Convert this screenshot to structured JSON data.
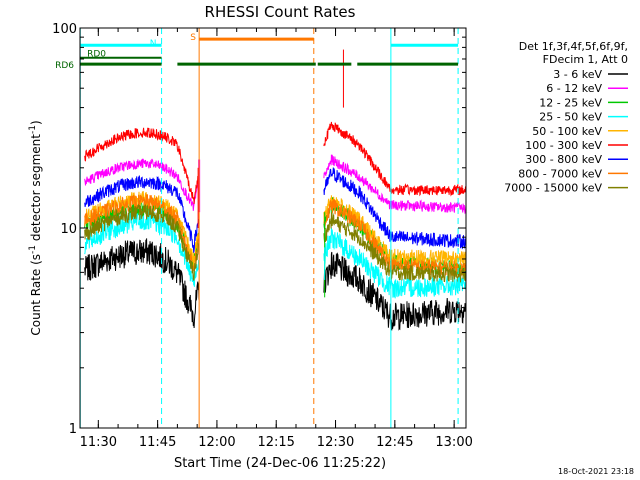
{
  "chart_data": {
    "type": "line",
    "title": "RHESSI Count Rates",
    "xlabel": "Start Time (24-Dec-06 11:25:22)",
    "ylabel_main": "Count Rate (s",
    "ylabel_sup1": "-1",
    "ylabel_mid": " detector segment",
    "ylabel_sup2": "-1",
    "ylabel_end": ")",
    "y_scale": "log",
    "ylim": [
      1,
      100
    ],
    "y_ticks": [
      {
        "value": 1,
        "label": "1"
      },
      {
        "value": 10,
        "label": "10"
      },
      {
        "value": 100,
        "label": "100"
      }
    ],
    "xlim": [
      "11:25:22",
      "13:03:00"
    ],
    "x_ticks": [
      "11:30",
      "11:45",
      "12:00",
      "12:15",
      "12:30",
      "12:45",
      "13:00"
    ],
    "legend_header": [
      "Det 1f,3f,4f,5f,6f,9f,",
      "FDecim 1, Att 0"
    ],
    "series": [
      {
        "name": "3 - 6 keV",
        "color": "#000000",
        "values": [
          [
            11.5,
            6.0
          ],
          [
            11.7,
            7.6
          ],
          [
            11.83,
            5.9
          ],
          [
            11.93,
            3.6
          ],
          [
            12.48,
            6.6
          ],
          [
            12.6,
            5.5
          ],
          [
            12.73,
            3.6
          ],
          [
            13.05,
            4.0
          ]
        ]
      },
      {
        "name": "6 - 12 keV",
        "color": "#ff00ff",
        "values": [
          [
            11.5,
            16.5
          ],
          [
            11.7,
            21.0
          ],
          [
            11.83,
            18.0
          ],
          [
            11.93,
            12.5
          ],
          [
            12.48,
            22.0
          ],
          [
            12.6,
            18.0
          ],
          [
            12.73,
            13.0
          ],
          [
            13.05,
            12.5
          ]
        ]
      },
      {
        "name": "12 - 25 keV",
        "color": "#00c800",
        "values": [
          [
            11.5,
            10.0
          ],
          [
            11.7,
            12.7
          ],
          [
            11.83,
            10.5
          ],
          [
            11.93,
            6.5
          ],
          [
            12.48,
            13.0
          ],
          [
            12.6,
            10.5
          ],
          [
            12.73,
            6.8
          ],
          [
            13.05,
            6.2
          ]
        ]
      },
      {
        "name": "25 - 50 keV",
        "color": "#00ffff",
        "values": [
          [
            11.5,
            8.0
          ],
          [
            11.7,
            10.8
          ],
          [
            11.83,
            9.0
          ],
          [
            11.93,
            5.2
          ],
          [
            12.48,
            9.0
          ],
          [
            12.6,
            7.0
          ],
          [
            12.73,
            5.0
          ],
          [
            13.05,
            5.2
          ]
        ]
      },
      {
        "name": "50 - 100 keV",
        "color": "#ffb400",
        "values": [
          [
            11.5,
            11.0
          ],
          [
            11.7,
            14.0
          ],
          [
            11.83,
            11.5
          ],
          [
            11.93,
            6.8
          ],
          [
            12.48,
            14.0
          ],
          [
            12.6,
            11.0
          ],
          [
            12.73,
            7.2
          ],
          [
            13.05,
            7.0
          ]
        ]
      },
      {
        "name": "100 - 300 keV",
        "color": "#ff0000",
        "values": [
          [
            11.5,
            22.0
          ],
          [
            11.7,
            30.0
          ],
          [
            11.83,
            26.0
          ],
          [
            11.93,
            13.5
          ],
          [
            12.48,
            33.0
          ],
          [
            12.6,
            26.0
          ],
          [
            12.73,
            15.5
          ],
          [
            13.05,
            15.5
          ]
        ]
      },
      {
        "name": "300 - 800 keV",
        "color": "#0000ff",
        "values": [
          [
            11.5,
            13.0
          ],
          [
            11.7,
            17.0
          ],
          [
            11.83,
            15.0
          ],
          [
            11.93,
            8.0
          ],
          [
            12.48,
            19.0
          ],
          [
            12.6,
            15.0
          ],
          [
            12.73,
            9.0
          ],
          [
            13.05,
            8.5
          ]
        ]
      },
      {
        "name": "800 - 7000 keV",
        "color": "#ff7800",
        "values": [
          [
            11.5,
            10.5
          ],
          [
            11.7,
            13.5
          ],
          [
            11.83,
            11.0
          ],
          [
            11.93,
            6.2
          ],
          [
            12.48,
            13.0
          ],
          [
            12.6,
            10.5
          ],
          [
            12.73,
            6.5
          ],
          [
            13.05,
            6.2
          ]
        ]
      },
      {
        "name": "7000 - 15000 keV",
        "color": "#808000",
        "values": [
          [
            11.5,
            9.0
          ],
          [
            11.7,
            12.0
          ],
          [
            11.83,
            10.0
          ],
          [
            11.93,
            5.8
          ],
          [
            12.48,
            11.0
          ],
          [
            12.6,
            9.0
          ],
          [
            12.73,
            6.0
          ],
          [
            13.05,
            5.8
          ]
        ]
      }
    ],
    "flags": [
      {
        "label": "N",
        "color": "#00ffff"
      },
      {
        "label": "S",
        "color": "#ff7800"
      },
      {
        "label": "RD0",
        "color": "#006400"
      },
      {
        "label": "RD6",
        "color": "#006400"
      }
    ],
    "footer_date": "18-Oct-2021 23:18"
  }
}
